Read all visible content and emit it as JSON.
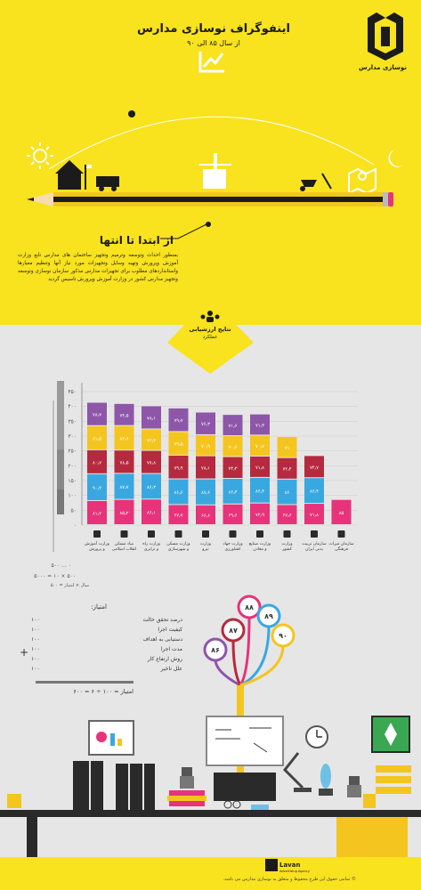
{
  "header": {
    "title": "اینفوگراف نوسازی مدارس",
    "subtitle": "از سال ۸۵ الی ۹۰",
    "logo_text": "نوسازی مدارس"
  },
  "intro": {
    "heading": "از ابتدا تا انتها",
    "body": "بمنظور احداث وتوسعه وترمیم وتجهیز ساختمان های مدارس تابع وزارت آموزش وپرورش وتهیه وسایل وتجهیزات مورد نیاز آنها وتنظیم معیارها واستانداردهای مطلوب برای تجهیزات مدارس مذکور سازمان نوسازی وتوسعه وتجهیز مدارس کشور در وزارت آموزش وپرورش تاسیس گردید"
  },
  "badge": {
    "title": "نتایج ارزشیابی",
    "subtitle": "عملکرد"
  },
  "colors": {
    "purple": "#8e56a8",
    "yellow": "#f4c51e",
    "red": "#b52a3e",
    "blue": "#3aa8e0",
    "pink": "#e6337a",
    "background_top": "#f9e21e",
    "background_bottom": "#e6e6e6"
  },
  "chart_data": {
    "type": "bar",
    "stacked": true,
    "categories": [
      "وزارت آموزش و پرورش",
      "بنیاد مسکن انقلاب اسلامی",
      "وزارت راه و ترابری",
      "وزارت مسکن و شهرسازی",
      "وزارت نیرو",
      "وزارت جهاد کشاورزی",
      "وزارت صنایع و معادن",
      "وزارت کشور",
      "سازمان تربیت بدنی ایران",
      "سازمان میراث فرهنگی"
    ],
    "category_icons": [
      "graduation-cap-icon",
      "house-icon",
      "road-icon",
      "buildings-icon",
      "tower-icon",
      "wheat-icon",
      "factory-icon",
      "globe-icon",
      "racket-icon",
      "monument-icon"
    ],
    "series": [
      {
        "color": "#e6337a",
        "values": [
          81.2,
          85.2,
          86.1,
          67.7,
          66.6,
          69.6,
          72.9,
          67.6,
          71.8,
          85
        ]
      },
      {
        "color": "#3aa8e0",
        "values": [
          90.4,
          87.7,
          86.3,
          86.6,
          87.6,
          86.4,
          86.4,
          86,
          86.4,
          null
        ]
      },
      {
        "color": "#b52a3e",
        "values": [
          80.7,
          78.5,
          77.8,
          79.9,
          78.1,
          73.3,
          71.8,
          72.4,
          74.7,
          null
        ]
      },
      {
        "color": "#f4c51e",
        "values": [
          81.5,
          82.6,
          72.3,
          79.5,
          70.9,
          70.6,
          70.7,
          71,
          null,
          null
        ]
      },
      {
        "color": "#8e56a8",
        "values": [
          78.7,
          74.5,
          78.1,
          79.7,
          76.3,
          71.6,
          71.3,
          null,
          null,
          null
        ]
      }
    ],
    "yticks": [
      "۰",
      "۵۰",
      "۱۰۰",
      "۱۵۰",
      "۲۰۰",
      "۲۵۰",
      "۳۰۰",
      "۳۵۰",
      "۴۰۰",
      "۴۵۰"
    ],
    "ylim": [
      0,
      450
    ],
    "grid": true,
    "axis_notes": [
      "۰ ... ۵۰۰",
      "۵۰۰ × ۱۰ = ۵۰۰۰",
      "سال × امتیاز = ۵۰۰"
    ]
  },
  "calculation": {
    "title": "امتیاز:",
    "rows": [
      {
        "label": "درصد تحقق خالت",
        "value": "۱۰۰"
      },
      {
        "label": "کیفیت اجرا",
        "value": "۱۰۰"
      },
      {
        "label": "دستیابی به اهداف",
        "value": "۱۰۰"
      },
      {
        "label": "مدت اجرا",
        "value": "۱۰۰"
      },
      {
        "label": "روش ارتفاع کار",
        "value": "۱۰۰"
      },
      {
        "label": "علل تاخیر",
        "value": "۱۰۰"
      }
    ],
    "plus": "+",
    "formula": "امتیاز = ۱۰۰ ÷ ۶ = ۶۰۰"
  },
  "balloons": [
    {
      "value": "۸۶",
      "color": "#8e56a8"
    },
    {
      "value": "۸۷",
      "color": "#b52a3e"
    },
    {
      "value": "۸۸",
      "color": "#e6337a"
    },
    {
      "value": "۸۹",
      "color": "#3aa8e0"
    },
    {
      "value": "۹۰",
      "color": "#f4c51e"
    }
  ],
  "footer": {
    "agency_name": "Lavan",
    "agency_sub": "Advertising Agency",
    "copyright": "© تمامی حقوق این طرح محفوظ و متعلق به نوسازی مدارس می باشد."
  }
}
